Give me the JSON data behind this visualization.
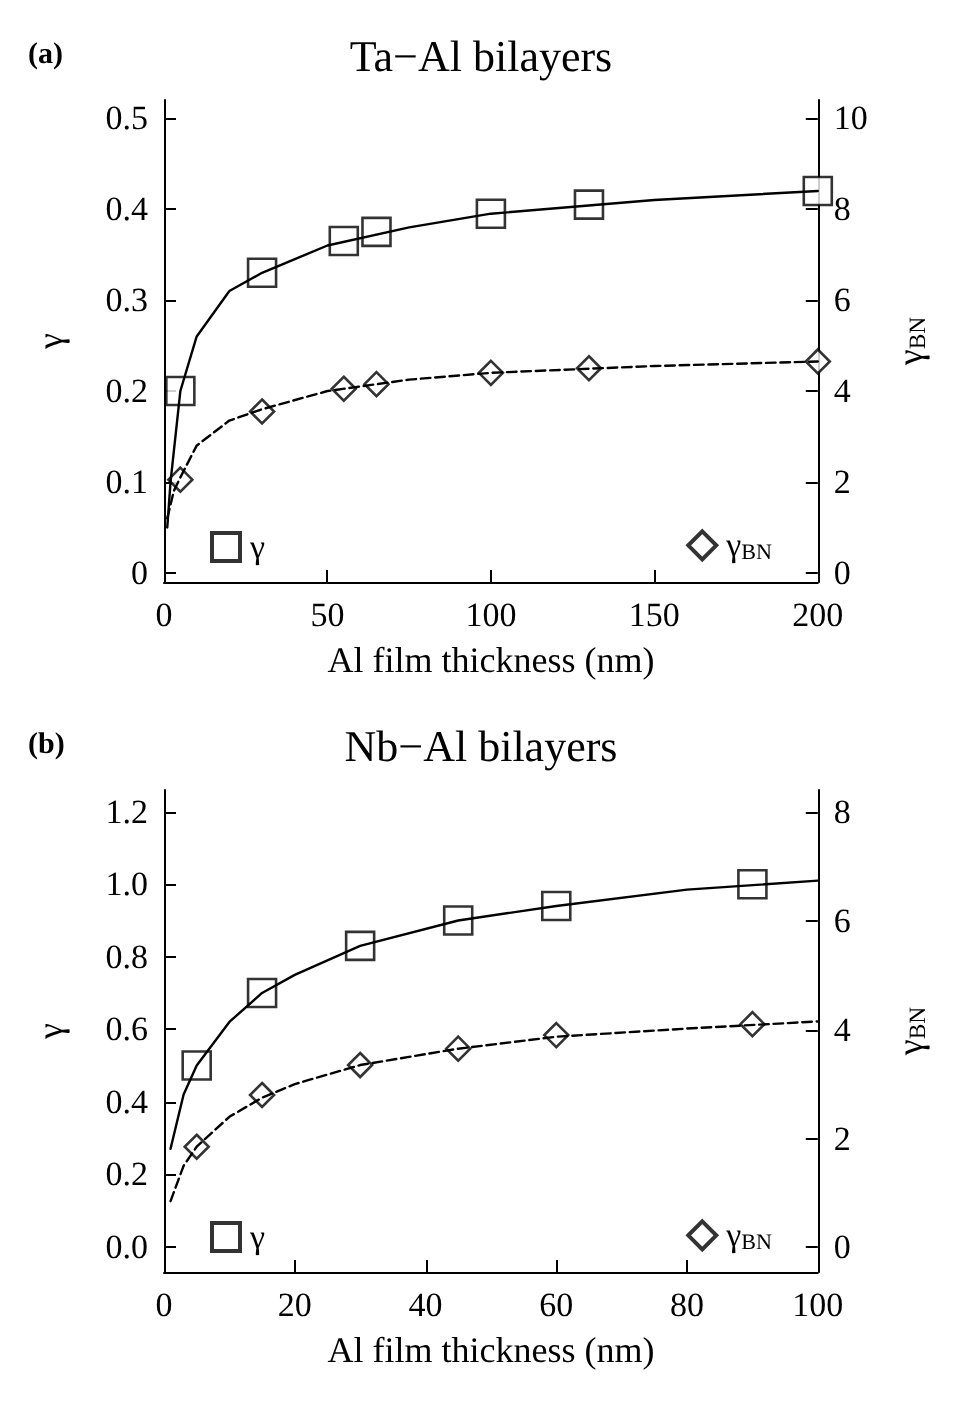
{
  "chart_data": [
    {
      "type": "line",
      "title": "Ta−Al bilayers",
      "annotations": [
        "(a)"
      ],
      "xlabel": "Al film thickness (nm)",
      "ylabel": "γ",
      "y2label": "γ$_{BN}$",
      "xlim": [
        0,
        200
      ],
      "xticks": [
        0,
        50,
        100,
        150,
        200
      ],
      "ylim": [
        -0.01,
        0.52
      ],
      "yticks": [
        0,
        0.1,
        0.2,
        0.3,
        0.4,
        0.5
      ],
      "y2lim": [
        -0.2,
        10.4
      ],
      "y2ticks": [
        0,
        2,
        4,
        6,
        8,
        10
      ],
      "legend": "bottom",
      "grid": false,
      "series": [
        {
          "name": "γ",
          "type": "scatter",
          "marker": "square",
          "color": "#000000",
          "x": [
            5,
            30,
            55,
            65,
            100,
            130,
            200
          ],
          "values": [
            0.2,
            0.33,
            0.365,
            0.375,
            0.395,
            0.405,
            0.42
          ]
        },
        {
          "name": "γ$_{BN}$",
          "type": "scatter",
          "marker": "diamond",
          "axis": "y2",
          "color": "#000000",
          "x": [
            5,
            30,
            55,
            65,
            100,
            130,
            200
          ],
          "values": [
            2.05,
            3.55,
            4.05,
            4.15,
            4.4,
            4.5,
            4.65
          ]
        },
        {
          "type": "line",
          "marker": "none",
          "line_style": "solid",
          "color": "#000000",
          "x": [
            1,
            2,
            5,
            10,
            20,
            30,
            50,
            75,
            100,
            150,
            200
          ],
          "values": [
            0.05,
            0.1,
            0.2,
            0.26,
            0.31,
            0.33,
            0.36,
            0.38,
            0.395,
            0.41,
            0.42
          ]
        },
        {
          "type": "line",
          "marker": "none",
          "line_style": "dashed",
          "axis": "y2",
          "color": "#000000",
          "x": [
            1,
            3,
            5,
            10,
            20,
            30,
            50,
            75,
            100,
            150,
            200
          ],
          "values": [
            1.2,
            1.8,
            2.1,
            2.8,
            3.35,
            3.6,
            4.0,
            4.25,
            4.4,
            4.55,
            4.65
          ]
        }
      ]
    },
    {
      "type": "line",
      "title": "Nb−Al bilayers",
      "annotations": [
        "(b)"
      ],
      "xlabel": "Al film thickness (nm)",
      "ylabel": "γ",
      "y2label": "γ$_{BN}$",
      "xlim": [
        0,
        100
      ],
      "xticks": [
        0,
        20,
        40,
        60,
        80,
        100
      ],
      "ylim": [
        -0.07,
        1.26
      ],
      "yticks": [
        {
          "value": 0,
          "label": "0.0"
        },
        0.2,
        0.4,
        0.6,
        0.8,
        {
          "value": 1,
          "label": "1.0"
        },
        1.2
      ],
      "y2lim": [
        -0.45,
        8.4
      ],
      "y2ticks": [
        0,
        2,
        4,
        6,
        8
      ],
      "legend": "bottom",
      "grid": false,
      "series": [
        {
          "name": "γ",
          "type": "scatter",
          "marker": "square",
          "color": "#000000",
          "x": [
            5,
            15,
            30,
            45,
            60,
            90
          ],
          "values": [
            0.5,
            0.7,
            0.83,
            0.9,
            0.94,
            1.0
          ]
        },
        {
          "name": "γ$_{BN}$",
          "type": "scatter",
          "marker": "diamond",
          "axis": "y2",
          "color": "#000000",
          "x": [
            5,
            15,
            30,
            45,
            60,
            90
          ],
          "values": [
            1.85,
            2.8,
            3.35,
            3.65,
            3.9,
            4.1
          ]
        },
        {
          "type": "line",
          "marker": "none",
          "line_style": "solid",
          "color": "#000000",
          "x": [
            1,
            3,
            5,
            10,
            15,
            20,
            30,
            45,
            60,
            80,
            100
          ],
          "values": [
            0.27,
            0.42,
            0.5,
            0.62,
            0.7,
            0.75,
            0.83,
            0.9,
            0.94,
            0.985,
            1.01
          ]
        },
        {
          "type": "line",
          "marker": "none",
          "line_style": "dashed",
          "axis": "y2",
          "color": "#000000",
          "x": [
            1,
            3,
            5,
            10,
            15,
            20,
            30,
            45,
            60,
            80,
            100
          ],
          "values": [
            0.85,
            1.5,
            1.85,
            2.4,
            2.75,
            3.0,
            3.35,
            3.65,
            3.87,
            4.02,
            4.15
          ]
        }
      ]
    }
  ]
}
